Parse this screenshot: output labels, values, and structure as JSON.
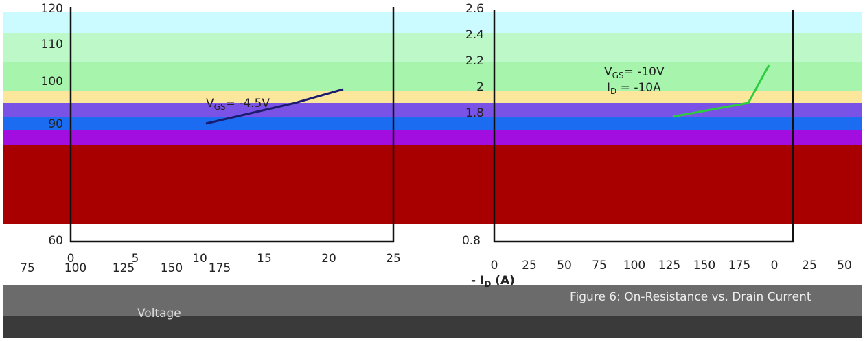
{
  "left_panel": {
    "y_tick_labels": [
      "120",
      "110",
      "100",
      "90",
      "60"
    ],
    "x_tick_labels": [
      "0",
      "5",
      "10",
      "15",
      "20",
      "25"
    ],
    "annotation": {
      "symbol": "V",
      "subscript": "GS",
      "rest": "= -4.5V"
    },
    "lower_row_labels": [
      "75",
      "100",
      "125",
      "150",
      "175"
    ]
  },
  "right_panel": {
    "y_tick_labels": [
      "2.6",
      "2.4",
      "2.2",
      "2",
      "1.8",
      "0.8"
    ],
    "annotation_1": {
      "symbol": "V",
      "subscript": "GS",
      "rest": "= -10V"
    },
    "annotation_2": {
      "symbol": "I",
      "subscript": "D",
      "rest": " = -10A"
    },
    "x_axis_label": {
      "prefix": "- I",
      "subscript": "D",
      "rest": " (A)"
    },
    "lower_row_labels": [
      "0",
      "25",
      "50",
      "75",
      "100",
      "125",
      "150",
      "175",
      "0",
      "25",
      "50"
    ]
  },
  "footer": {
    "left_caption": "Voltage",
    "right_caption": "Figure 6: On-Resistance vs. Drain Current"
  }
}
